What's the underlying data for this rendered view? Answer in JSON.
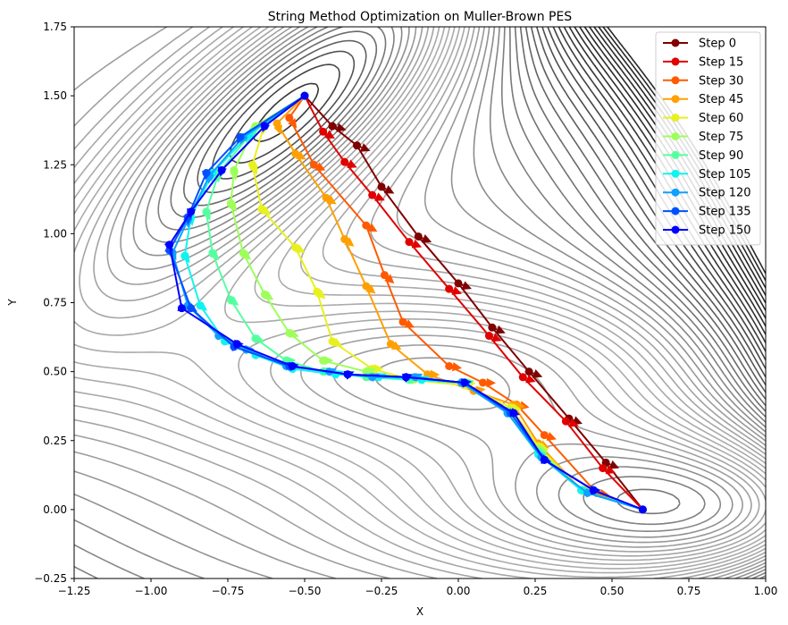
{
  "chart_data": {
    "type": "line",
    "title": "String Method Optimization on Muller-Brown PES",
    "xlabel": "X",
    "ylabel": "Y",
    "xlim": [
      -1.25,
      1.0
    ],
    "ylim": [
      -0.25,
      1.75
    ],
    "xticks": [
      "−1.25",
      "−1.00",
      "−0.75",
      "−0.50",
      "−0.25",
      "0.00",
      "0.25",
      "0.50",
      "0.75",
      "1.00"
    ],
    "yticks": [
      "−0.25",
      "0.00",
      "0.25",
      "0.50",
      "0.75",
      "1.00",
      "1.25",
      "1.50",
      "1.75"
    ],
    "grid": false,
    "legend_position": "top-right",
    "background": "contour lines of the Muller-Brown potential energy surface in grayscale",
    "markers_with_arrows": true,
    "series": [
      {
        "name": "Step 0",
        "color": "#7f0000",
        "x": [
          -0.5,
          -0.41,
          -0.33,
          -0.25,
          -0.13,
          0.0,
          0.11,
          0.23,
          0.36,
          0.48,
          0.6
        ],
        "y": [
          1.5,
          1.39,
          1.32,
          1.17,
          0.99,
          0.82,
          0.66,
          0.5,
          0.33,
          0.17,
          0.0
        ]
      },
      {
        "name": "Step 15",
        "color": "#e00000",
        "x": [
          -0.5,
          -0.44,
          -0.37,
          -0.28,
          -0.16,
          -0.03,
          0.1,
          0.21,
          0.35,
          0.47,
          0.6
        ],
        "y": [
          1.5,
          1.37,
          1.26,
          1.14,
          0.97,
          0.8,
          0.63,
          0.48,
          0.32,
          0.15,
          0.0
        ]
      },
      {
        "name": "Step 30",
        "color": "#ff5a00",
        "x": [
          -0.5,
          -0.55,
          -0.47,
          -0.3,
          -0.24,
          -0.18,
          -0.03,
          0.08,
          0.19,
          0.28,
          0.45,
          0.6
        ],
        "y": [
          1.5,
          1.42,
          1.25,
          1.03,
          0.85,
          0.68,
          0.52,
          0.46,
          0.38,
          0.27,
          0.06,
          0.0
        ]
      },
      {
        "name": "Step 45",
        "color": "#ffa000",
        "x": [
          -0.5,
          -0.59,
          -0.53,
          -0.43,
          -0.37,
          -0.3,
          -0.22,
          -0.1,
          0.05,
          0.18,
          0.26,
          0.4,
          0.6
        ],
        "y": [
          1.5,
          1.4,
          1.29,
          1.13,
          0.98,
          0.81,
          0.6,
          0.49,
          0.43,
          0.38,
          0.24,
          0.07,
          0.0
        ]
      },
      {
        "name": "Step 60",
        "color": "#e8f020",
        "x": [
          -0.5,
          -0.63,
          -0.67,
          -0.64,
          -0.53,
          -0.46,
          -0.41,
          -0.28,
          -0.15,
          0.02,
          0.17,
          0.26,
          0.4,
          0.6
        ],
        "y": [
          1.5,
          1.4,
          1.25,
          1.09,
          0.95,
          0.79,
          0.61,
          0.51,
          0.47,
          0.45,
          0.37,
          0.23,
          0.07,
          0.0
        ]
      },
      {
        "name": "Step 75",
        "color": "#9dff5a",
        "x": [
          -0.5,
          -0.66,
          -0.73,
          -0.74,
          -0.7,
          -0.63,
          -0.55,
          -0.44,
          -0.3,
          -0.15,
          0.02,
          0.16,
          0.26,
          0.4,
          0.6
        ],
        "y": [
          1.5,
          1.39,
          1.23,
          1.11,
          0.93,
          0.78,
          0.64,
          0.54,
          0.5,
          0.47,
          0.46,
          0.36,
          0.22,
          0.07,
          0.0
        ]
      },
      {
        "name": "Step 90",
        "color": "#55ffa0",
        "x": [
          -0.5,
          -0.67,
          -0.78,
          -0.82,
          -0.8,
          -0.74,
          -0.66,
          -0.56,
          -0.44,
          -0.3,
          -0.16,
          0.01,
          0.16,
          0.26,
          0.4,
          0.6
        ],
        "y": [
          1.5,
          1.37,
          1.22,
          1.08,
          0.93,
          0.76,
          0.62,
          0.54,
          0.5,
          0.48,
          0.47,
          0.46,
          0.35,
          0.21,
          0.07,
          0.0
        ]
      },
      {
        "name": "Step 105",
        "color": "#10f4f0",
        "x": [
          -0.5,
          -0.68,
          -0.8,
          -0.87,
          -0.89,
          -0.84,
          -0.76,
          -0.66,
          -0.54,
          -0.4,
          -0.26,
          -0.12,
          0.02,
          0.16,
          0.26,
          0.4,
          0.6
        ],
        "y": [
          1.5,
          1.36,
          1.22,
          1.06,
          0.92,
          0.74,
          0.61,
          0.56,
          0.51,
          0.49,
          0.48,
          0.47,
          0.46,
          0.35,
          0.2,
          0.07,
          0.0
        ]
      },
      {
        "name": "Step 120",
        "color": "#10a0ff",
        "x": [
          -0.5,
          -0.7,
          -0.81,
          -0.88,
          -0.93,
          -0.88,
          -0.78,
          -0.69,
          -0.56,
          -0.42,
          -0.28,
          -0.14,
          0.01,
          0.16,
          0.27,
          0.42,
          0.6
        ],
        "y": [
          1.5,
          1.35,
          1.21,
          1.05,
          0.93,
          0.74,
          0.63,
          0.58,
          0.52,
          0.5,
          0.48,
          0.48,
          0.46,
          0.35,
          0.19,
          0.06,
          0.0
        ]
      },
      {
        "name": "Step 135",
        "color": "#0050ff",
        "x": [
          -0.5,
          -0.71,
          -0.82,
          -0.88,
          -0.94,
          -0.87,
          -0.73,
          -0.55,
          -0.36,
          -0.17,
          0.02,
          0.17,
          0.28,
          0.44,
          0.6
        ],
        "y": [
          1.5,
          1.35,
          1.22,
          1.06,
          0.94,
          0.73,
          0.59,
          0.52,
          0.49,
          0.48,
          0.46,
          0.35,
          0.18,
          0.07,
          0.0
        ]
      },
      {
        "name": "Step 150",
        "color": "#0000ff",
        "x": [
          -0.5,
          -0.63,
          -0.77,
          -0.87,
          -0.94,
          -0.9,
          -0.72,
          -0.54,
          -0.36,
          -0.17,
          0.02,
          0.18,
          0.28,
          0.44,
          0.6
        ],
        "y": [
          1.5,
          1.39,
          1.23,
          1.08,
          0.96,
          0.73,
          0.6,
          0.52,
          0.49,
          0.48,
          0.46,
          0.35,
          0.18,
          0.07,
          0.0
        ]
      }
    ]
  }
}
